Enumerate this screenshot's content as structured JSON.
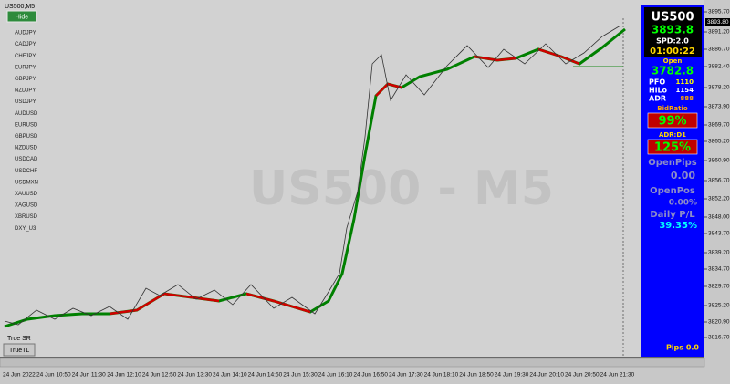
{
  "window": {
    "title": "US500,M5",
    "hide_button": "Hide",
    "watermark": "US500 - M5"
  },
  "symbols": [
    "AUDJPY",
    "CADJPY",
    "CHFJPY",
    "EURJPY",
    "GBPJPY",
    "NZDJPY",
    "USDJPY",
    "AUDUSD",
    "EURUSD",
    "GBPUSD",
    "NZDUSD",
    "USDCAD",
    "USDCHF",
    "USDMXN",
    "XAUUSD",
    "XAGUSD",
    "XBRUSD",
    "DXY_U3"
  ],
  "bottom_left": {
    "label": "True SR",
    "button": "TrueTL"
  },
  "price_axis": {
    "current": "3893.80",
    "labels": [
      "3895.70",
      "3891.20",
      "3886.70",
      "3882.40",
      "3878.20",
      "3873.90",
      "3869.70",
      "3865.20",
      "3860.90",
      "3856.70",
      "3852.20",
      "3848.00",
      "3843.70",
      "3839.20",
      "3834.70",
      "3829.70",
      "3825.20",
      "3820.90",
      "3816.70"
    ]
  },
  "time_axis": [
    "24 Jun 2022",
    "24 Jun 10:50",
    "24 Jun 11:30",
    "24 Jun 12:10",
    "24 Jun 12:50",
    "24 Jun 13:30",
    "24 Jun 14:10",
    "24 Jun 14:50",
    "24 Jun 15:30",
    "24 Jun 16:10",
    "24 Jun 16:50",
    "24 Jun 17:30",
    "24 Jun 18:10",
    "24 Jun 18:50",
    "24 Jun 19:30",
    "24 Jun 20:10",
    "24 Jun 20:50",
    "24 Jun 21:30"
  ],
  "panel": {
    "symbol": "US500",
    "bid": "3893.8",
    "spread": "SPD:2.0",
    "timer": "01:00:22",
    "open_label": "Open",
    "open": "3782.8",
    "pfo_label": "PFO",
    "pfo": "1110",
    "hilo_label": "HiLo",
    "hilo": "1154",
    "adr_label": "ADR",
    "adr": "888",
    "bidratio_label": "BidRatio",
    "bidratio": "99%",
    "adrd1_label": "ADR:D1",
    "adrd1": "125%",
    "openpips_label": "OpenPips",
    "openpips": "0.00",
    "openpos_label": "OpenPos",
    "openpos": "0.00%",
    "dailypl_label": "Daily P/L",
    "dailypl": "39.35%",
    "pips": "Pips 0.0"
  }
}
